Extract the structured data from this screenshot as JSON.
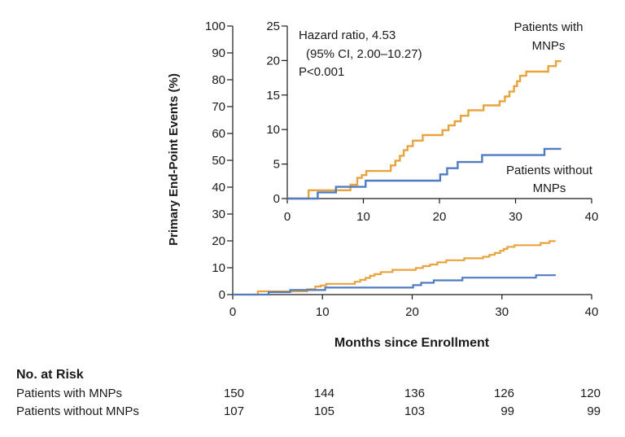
{
  "chart_data": [
    {
      "type": "line",
      "subtype": "kaplan-meier-step",
      "xlabel": "Months since Enrollment",
      "ylabel": "Primary End-Point Events (%)",
      "xlim": [
        0,
        40
      ],
      "ylim": [
        0,
        100
      ],
      "xticks": [
        0,
        10,
        20,
        30,
        40
      ],
      "yticks": [
        0,
        10,
        20,
        30,
        40,
        50,
        60,
        70,
        80,
        90,
        100
      ],
      "grid": false,
      "series": [
        {
          "name": "Patients with MNPs",
          "color": "#e8a33d",
          "x": [
            0,
            2.8,
            5.8,
            8.3,
            9.2,
            9.8,
            10.4,
            13.6,
            14.2,
            14.8,
            15.3,
            15.8,
            16.5,
            17.8,
            20.4,
            21.2,
            22.0,
            22.8,
            23.8,
            25.8,
            27.9,
            28.6,
            29.2,
            29.8,
            30.2,
            30.6,
            31.4,
            34.3,
            35.3,
            36.0
          ],
          "y": [
            0,
            1.2,
            1.2,
            2.0,
            3.0,
            3.4,
            4.0,
            4.8,
            5.5,
            6.2,
            7.0,
            7.6,
            8.4,
            9.2,
            9.9,
            10.6,
            11.2,
            12.0,
            12.8,
            13.5,
            14.1,
            14.8,
            15.5,
            16.3,
            17.0,
            17.8,
            18.4,
            19.2,
            19.9,
            19.9
          ]
        },
        {
          "name": "Patients without MNPs",
          "color": "#4f7cc0",
          "x": [
            0,
            4.0,
            6.4,
            10.3,
            18.0,
            20.1,
            21.0,
            22.4,
            25.6,
            33.8,
            36.0
          ],
          "y": [
            0,
            0.9,
            1.7,
            2.6,
            2.6,
            3.5,
            4.4,
            5.3,
            6.3,
            7.2,
            7.2
          ]
        }
      ]
    },
    {
      "type": "line",
      "subtype": "kaplan-meier-step-inset",
      "xlim": [
        0,
        40
      ],
      "ylim": [
        0,
        25
      ],
      "xticks": [
        0,
        10,
        20,
        30,
        40
      ],
      "yticks": [
        0,
        5,
        10,
        15,
        20,
        25
      ],
      "annotations": [
        "Hazard ratio, 4.53",
        "(95% CI, 2.00–10.27)",
        "P<0.001"
      ],
      "series_labels": [
        {
          "series": "Patients with MNPs",
          "lines": [
            "Patients with",
            "MNPs"
          ]
        },
        {
          "series": "Patients without MNPs",
          "lines": [
            "Patients without",
            "MNPs"
          ]
        }
      ]
    }
  ],
  "risk_table": {
    "title": "No. at Risk",
    "rows": [
      {
        "label": "Patients with MNPs",
        "values": [
          "150",
          "144",
          "136",
          "126",
          "120"
        ]
      },
      {
        "label": "Patients without MNPs",
        "values": [
          "107",
          "105",
          "103",
          "99",
          "99"
        ]
      }
    ]
  }
}
